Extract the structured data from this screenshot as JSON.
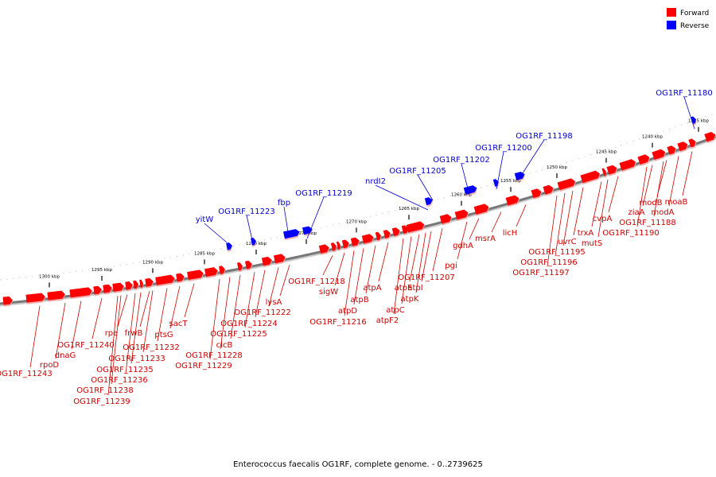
{
  "caption": "Enterococcus faecalis OG1RF, complete genome. - 0..2739625",
  "legend": [
    {
      "label": "Forward",
      "color": "#ff0000"
    },
    {
      "label": "Reverse",
      "color": "#0000ff"
    }
  ],
  "colors": {
    "forward": "#ff0000",
    "reverse": "#0000ff",
    "backbone": "#777777",
    "forward_label": "#cc0000",
    "reverse_label": "#0000cc"
  },
  "axis_ticks": [
    "1300 kbp",
    "1295 kbp",
    "1290 kbp",
    "1285 kbp",
    "1280 kbp",
    "1275 kbp",
    "1270 kbp",
    "1265 kbp",
    "1260 kbp",
    "1255 kbp",
    "1250 kbp",
    "1245 kbp",
    "1240 kbp",
    "1235 kbp"
  ],
  "forward_labels": [
    "OG1RF_11243",
    "rpoD",
    "dnaG",
    "OG1RF_11240",
    "OG1RF_11239",
    "OG1RF_11238",
    "rpe",
    "OG1RF_11236",
    "OG1RF_11235",
    "frwB",
    "OG1RF_11233",
    "OG1RF_11232",
    "ptsG",
    "sacT",
    "OG1RF_11229",
    "OG1RF_11228",
    "clcB",
    "OG1RF_11225",
    "OG1RF_11224",
    "OG1RF_11222",
    "lysA",
    "OG1RF_11218",
    "sigW",
    "OG1RF_11216",
    "atpD",
    "atpB",
    "atpA",
    "atpF2",
    "atpC",
    "atpE",
    "atpK",
    "atpI",
    "OG1RF_11207",
    "pgi",
    "gdhA",
    "msrA",
    "licH",
    "OG1RF_11197",
    "OG1RF_11196",
    "OG1RF_11195",
    "uvrC",
    "trxA",
    "mutS",
    "cvpA",
    "OG1RF_11190",
    "ziaA",
    "OG1RF_11188",
    "modB",
    "modA",
    "moaB"
  ],
  "reverse_labels": [
    "yitW",
    "OG1RF_11223",
    "fbp",
    "OG1RF_11219",
    "nrdI2",
    "OG1RF_11205",
    "OG1RF_11202",
    "OG1RF_11200",
    "OG1RF_11198",
    "OG1RF_11180"
  ]
}
